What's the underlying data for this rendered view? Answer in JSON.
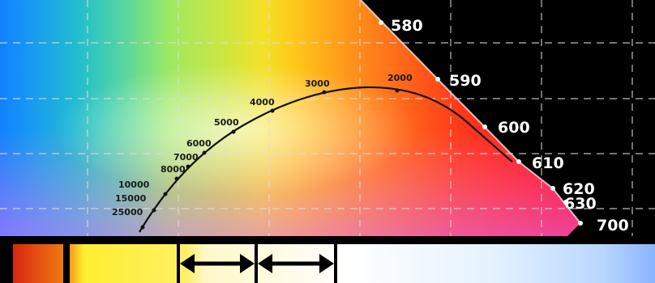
{
  "diagram": {
    "kind": "cie-chromaticity-detail-with-planckian-locus",
    "colors": {
      "background": "#000000",
      "grid": "#dddddd",
      "locus": "#111111",
      "wavelength_text": "#ffffff",
      "temperature_text": "#1a1a1a"
    },
    "planckian_locus": {
      "temperatures_k": [
        "25000",
        "15000",
        "10000",
        "8000",
        "7000",
        "6000",
        "5000",
        "4000",
        "3000",
        "2000"
      ]
    },
    "spectral_locus": {
      "wavelengths_nm": [
        "580",
        "590",
        "600",
        "610",
        "620",
        "630",
        "700"
      ]
    }
  },
  "legend_strip": {
    "swatches": [
      "red-orange",
      "yellow",
      "warm-white",
      "neutral-white",
      "cool-white",
      "light-blue",
      "blue"
    ],
    "arrows": [
      "double-arrow-warm",
      "double-arrow-neutral"
    ]
  }
}
